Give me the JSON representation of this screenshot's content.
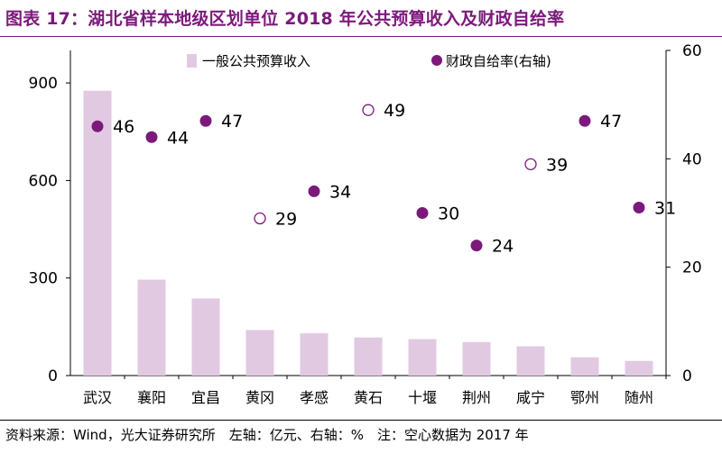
{
  "figure_title": "图表 17：湖北省样本地级区划单位 2018 年公共预算收入及财政自给率",
  "footer": "资料来源：Wind，光大证券研究所　左轴：亿元、右轴：%　注：空心数据为 2017 年",
  "colors": {
    "bar": "#e2c9e2",
    "point": "#7b1a7b",
    "title": "#7b1a7b",
    "axis": "#000000"
  },
  "chart_data": {
    "type": "bar",
    "categories": [
      "武汉",
      "襄阳",
      "宜昌",
      "黄冈",
      "孝感",
      "黄石",
      "十堰",
      "荆州",
      "咸宁",
      "鄂州",
      "随州"
    ],
    "series": [
      {
        "name": "一般公共预算收入",
        "type": "bar",
        "axis": "left",
        "values": [
          876,
          295,
          237,
          140,
          130,
          117,
          112,
          103,
          90,
          56,
          45
        ]
      },
      {
        "name": "财政自给率(右轴)",
        "type": "scatter",
        "axis": "right",
        "values": [
          46,
          44,
          47,
          29,
          34,
          49,
          30,
          24,
          39,
          47,
          31
        ],
        "labels": [
          "46",
          "44",
          "47",
          "29",
          "34",
          "49",
          "30",
          "24",
          "39",
          "47",
          "31"
        ],
        "hollow": [
          false,
          false,
          false,
          true,
          false,
          true,
          false,
          false,
          true,
          false,
          false
        ]
      }
    ],
    "y_left": {
      "ylim": [
        0,
        1000
      ],
      "ticks": [
        0,
        300,
        600,
        900
      ]
    },
    "y_right": {
      "ylim": [
        0,
        60
      ],
      "ticks": [
        0,
        20,
        40,
        60
      ]
    },
    "legend_position": "top-center",
    "grid": false
  }
}
